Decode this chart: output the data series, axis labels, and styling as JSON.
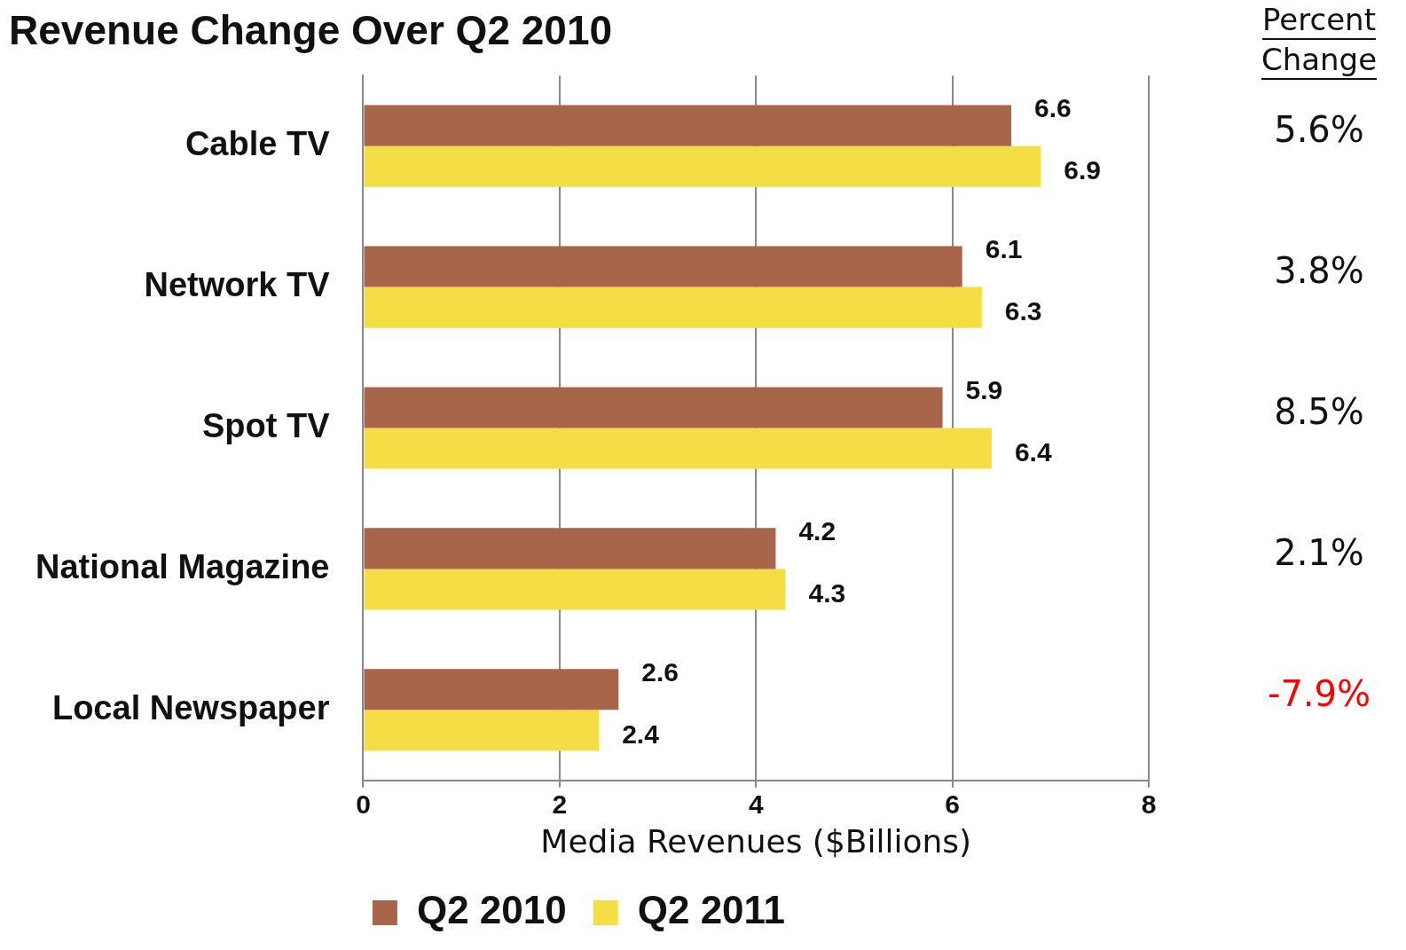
{
  "chart_data": {
    "type": "bar",
    "orientation": "horizontal",
    "title": "Revenue Change Over Q2 2010",
    "xlabel": "Media Revenues ($Billions)",
    "categories": [
      "Cable TV",
      "Network TV",
      "Spot TV",
      "National Magazine",
      "Local Newspaper"
    ],
    "series": [
      {
        "name": "Q2 2010",
        "color": "#a9654a",
        "values": [
          6.6,
          6.1,
          5.9,
          4.2,
          2.6
        ]
      },
      {
        "name": "Q2 2011",
        "color": "#f5dd45",
        "values": [
          6.9,
          6.3,
          6.4,
          4.3,
          2.4
        ]
      }
    ],
    "xlim": [
      0,
      8
    ],
    "xticks": [
      0,
      2,
      4,
      6,
      8
    ],
    "grid": "x",
    "legend": "bottom",
    "data_labels": true,
    "annotations": [
      "Percent Change",
      "5.6%",
      "3.8%",
      "8.5%",
      "2.1%",
      "-7.9%"
    ]
  }
}
